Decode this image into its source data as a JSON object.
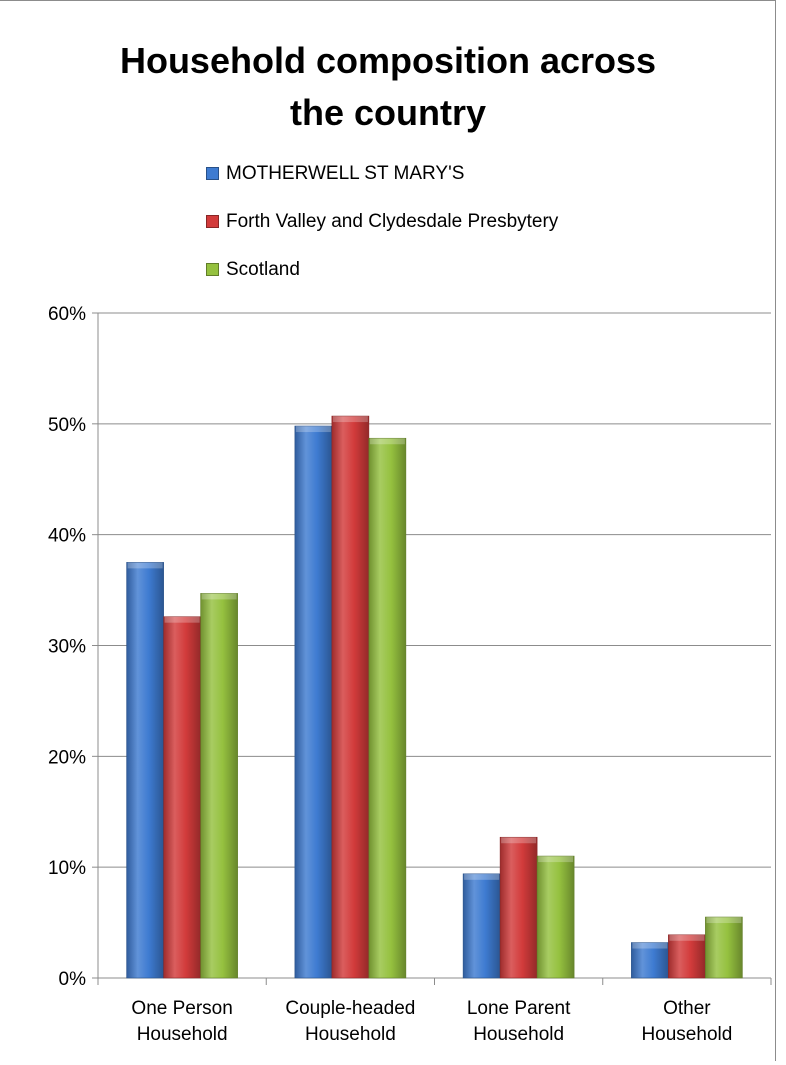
{
  "chart_data": {
    "type": "bar",
    "title_lines": [
      "Household composition across",
      "the country"
    ],
    "categories": [
      [
        "One Person",
        "Household"
      ],
      [
        "Couple-headed",
        "Household"
      ],
      [
        "Lone Parent",
        "Household"
      ],
      [
        "Other",
        "Household"
      ]
    ],
    "series": [
      {
        "name": "MOTHERWELL ST MARY'S",
        "color": "#3e7bd1",
        "values": [
          37.5,
          49.8,
          9.4,
          3.2
        ]
      },
      {
        "name": "Forth Valley and Clydesdale Presbytery",
        "color": "#d23b3b",
        "values": [
          32.6,
          50.7,
          12.7,
          3.9
        ]
      },
      {
        "name": "Scotland",
        "color": "#95c13f",
        "values": [
          34.7,
          48.7,
          11.0,
          5.5
        ]
      }
    ],
    "ylim": [
      0,
      60
    ],
    "yticks": [
      "0%",
      "10%",
      "20%",
      "30%",
      "40%",
      "50%",
      "60%"
    ],
    "grid": true,
    "legend_position": "top-center"
  }
}
